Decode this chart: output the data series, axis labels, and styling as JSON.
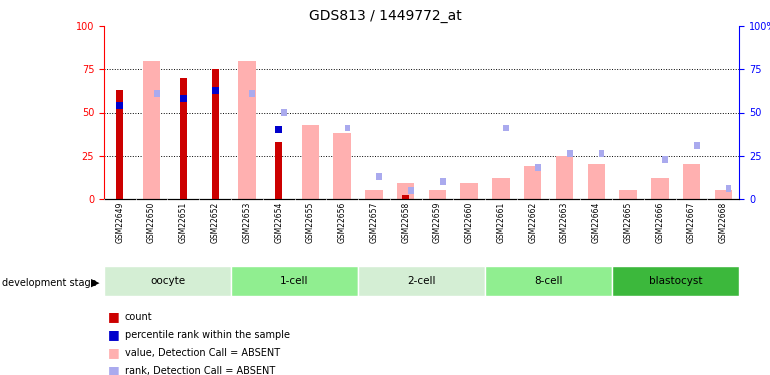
{
  "title": "GDS813 / 1449772_at",
  "samples": [
    "GSM22649",
    "GSM22650",
    "GSM22651",
    "GSM22652",
    "GSM22653",
    "GSM22654",
    "GSM22655",
    "GSM22656",
    "GSM22657",
    "GSM22658",
    "GSM22659",
    "GSM22660",
    "GSM22661",
    "GSM22662",
    "GSM22663",
    "GSM22664",
    "GSM22665",
    "GSM22666",
    "GSM22667",
    "GSM22668"
  ],
  "count_red": [
    63,
    0,
    70,
    75,
    0,
    33,
    0,
    0,
    0,
    2,
    0,
    0,
    0,
    0,
    0,
    0,
    0,
    0,
    0,
    0
  ],
  "rank_blue": [
    56,
    0,
    60,
    65,
    0,
    42,
    0,
    0,
    0,
    0,
    0,
    0,
    0,
    0,
    0,
    0,
    0,
    0,
    0,
    0
  ],
  "value_pink": [
    0,
    80,
    0,
    0,
    80,
    0,
    43,
    38,
    5,
    9,
    5,
    9,
    12,
    19,
    25,
    20,
    5,
    12,
    20,
    5
  ],
  "rank_lightblue": [
    0,
    63,
    0,
    0,
    63,
    52,
    0,
    43,
    15,
    7,
    12,
    0,
    43,
    20,
    28,
    28,
    0,
    25,
    33,
    8
  ],
  "stage_colors": [
    "#d4eed4",
    "#90ee90",
    "#d4eed4",
    "#90ee90",
    "#3cb83c"
  ],
  "stage_labels": [
    "oocyte",
    "1-cell",
    "2-cell",
    "8-cell",
    "blastocyst"
  ],
  "stage_ranges": [
    [
      0,
      4
    ],
    [
      4,
      8
    ],
    [
      8,
      12
    ],
    [
      12,
      16
    ],
    [
      16,
      20
    ]
  ],
  "ylim": [
    0,
    100
  ],
  "grid_values": [
    25,
    50,
    75
  ],
  "red_color": "#cc0000",
  "blue_color": "#0000cc",
  "pink_color": "#ffb0b0",
  "lightblue_color": "#aaaaee",
  "legend_labels": [
    "count",
    "percentile rank within the sample",
    "value, Detection Call = ABSENT",
    "rank, Detection Call = ABSENT"
  ]
}
